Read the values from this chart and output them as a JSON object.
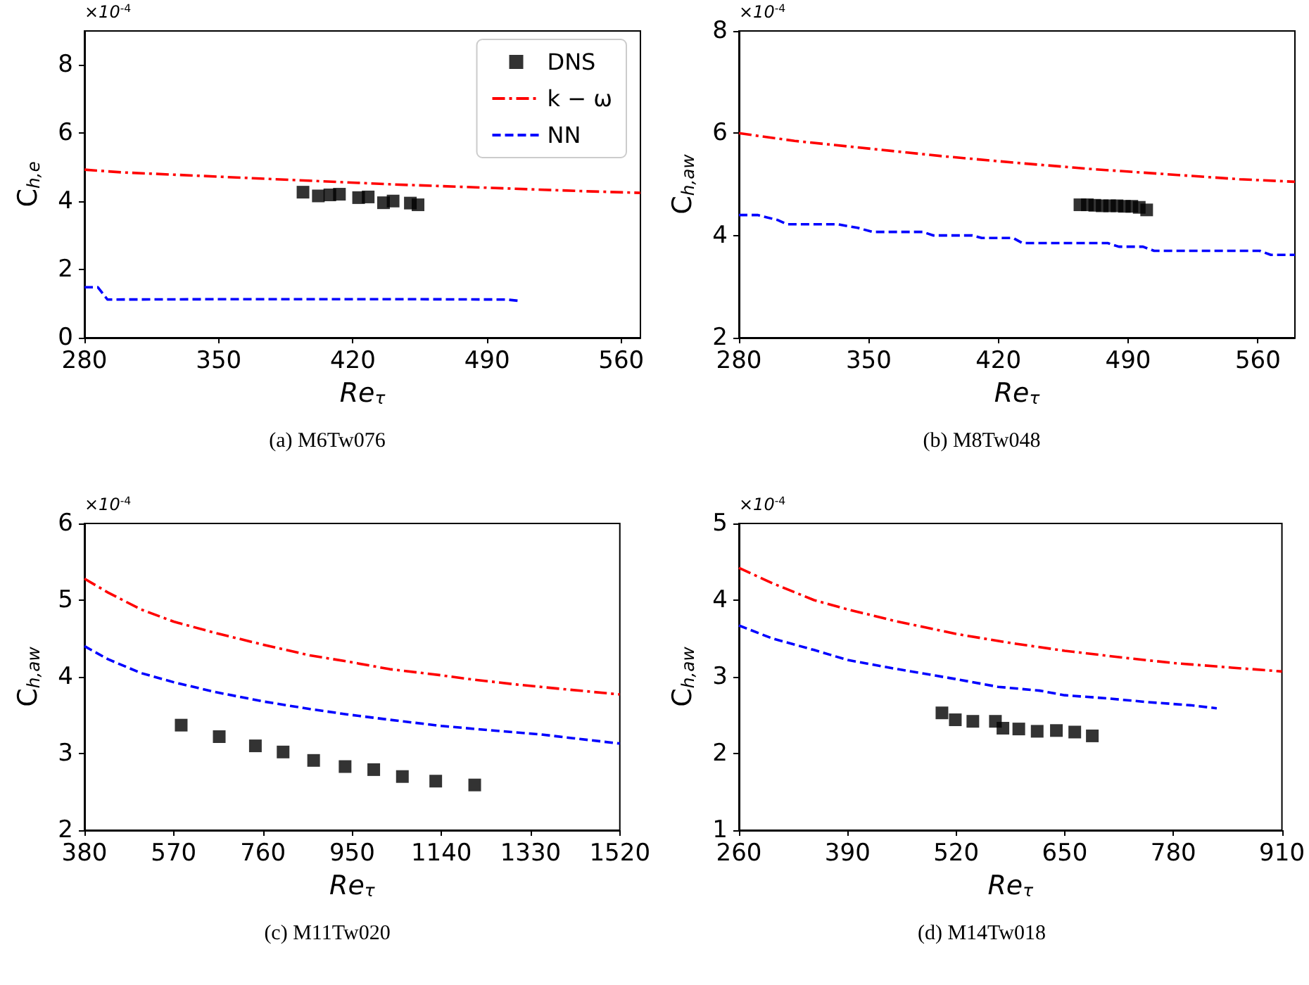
{
  "chart_data": [
    {
      "type": "line",
      "title": "(a) M6Tw076",
      "xlabel": "Re$_{τ}$",
      "ylabel": "C$_{h,e}$",
      "annotations": [
        "×10$^{-4}$"
      ],
      "xlim": [
        280,
        570
      ],
      "ylim": [
        0,
        9
      ],
      "xticks": [
        280,
        350,
        420,
        490,
        560
      ],
      "yticks": [
        0,
        2,
        4,
        6,
        8
      ],
      "grid": false,
      "legend": "top right",
      "series": [
        {
          "name": "DNS",
          "type": "scatter",
          "marker": "square",
          "color": "#000000",
          "x": [
            394,
            402,
            408,
            413,
            423,
            428,
            436,
            441,
            450,
            454
          ],
          "values": [
            4.27,
            4.16,
            4.19,
            4.21,
            4.11,
            4.13,
            3.96,
            4.01,
            3.95,
            3.9
          ]
        },
        {
          "name": "k − ω",
          "type": "line",
          "marker": "none",
          "line_style": "dashdot",
          "color": "#ff0000",
          "x": [
            280,
            300,
            340,
            400,
            440,
            490,
            540,
            570
          ],
          "values": [
            4.93,
            4.85,
            4.75,
            4.6,
            4.5,
            4.4,
            4.3,
            4.25
          ]
        },
        {
          "name": "NN",
          "type": "line",
          "marker": "none",
          "line_style": "dashed",
          "color": "#0000ff",
          "x": [
            280,
            287,
            292,
            350,
            400,
            450,
            500,
            507
          ],
          "values": [
            1.48,
            1.48,
            1.12,
            1.13,
            1.13,
            1.13,
            1.12,
            1.08
          ]
        }
      ]
    },
    {
      "type": "line",
      "title": "(b) M8Tw048",
      "xlabel": "Re$_{τ}$",
      "ylabel": "C$_{h,aw}$",
      "annotations": [
        "×10$^{-4}$"
      ],
      "xlim": [
        280,
        580
      ],
      "ylim": [
        2,
        8
      ],
      "xticks": [
        280,
        350,
        420,
        490,
        560
      ],
      "yticks": [
        2,
        4,
        6,
        8
      ],
      "grid": false,
      "series": [
        {
          "type": "scatter",
          "marker": "square",
          "color": "#000000",
          "x": [
            464,
            468,
            472,
            476,
            480,
            484,
            488,
            492,
            496,
            500
          ],
          "values": [
            4.6,
            4.6,
            4.59,
            4.58,
            4.58,
            4.58,
            4.57,
            4.57,
            4.55,
            4.5
          ]
        },
        {
          "type": "line",
          "marker": "none",
          "line_style": "dashdot",
          "color": "#ff0000",
          "x": [
            280,
            310,
            350,
            390,
            430,
            470,
            510,
            550,
            580
          ],
          "values": [
            6.0,
            5.85,
            5.7,
            5.55,
            5.42,
            5.3,
            5.2,
            5.1,
            5.05
          ]
        },
        {
          "type": "line",
          "marker": "none",
          "line_style": "dashed",
          "color": "#0000ff",
          "x": [
            280,
            290,
            301,
            306,
            333,
            344,
            352,
            379,
            385,
            406,
            411,
            428,
            433,
            479,
            485,
            498,
            504,
            561,
            567,
            580
          ],
          "values": [
            4.4,
            4.4,
            4.3,
            4.22,
            4.22,
            4.15,
            4.07,
            4.07,
            4.0,
            4.0,
            3.95,
            3.95,
            3.85,
            3.85,
            3.78,
            3.78,
            3.7,
            3.7,
            3.62,
            3.62
          ]
        }
      ]
    },
    {
      "type": "line",
      "title": "(c) M11Tw020",
      "xlabel": "Re$_{τ}$",
      "ylabel": "C$_{h,aw}$",
      "annotations": [
        "×10$^{-4}$"
      ],
      "xlim": [
        380,
        1520
      ],
      "ylim": [
        2,
        6
      ],
      "xticks": [
        380,
        570,
        760,
        950,
        1140,
        1330,
        1520
      ],
      "yticks": [
        2,
        3,
        4,
        5,
        6
      ],
      "grid": false,
      "series": [
        {
          "type": "scatter",
          "marker": "square",
          "color": "#000000",
          "x": [
            586,
            667,
            744,
            803,
            868,
            935,
            996,
            1057,
            1128,
            1211
          ],
          "values": [
            3.37,
            3.22,
            3.1,
            3.02,
            2.91,
            2.83,
            2.79,
            2.7,
            2.64,
            2.59
          ]
        },
        {
          "type": "line",
          "marker": "none",
          "line_style": "dashdot",
          "color": "#ff0000",
          "x": [
            380,
            430,
            500,
            570,
            660,
            760,
            860,
            940,
            1030,
            1140,
            1200,
            1300,
            1400,
            1520
          ],
          "values": [
            5.28,
            5.1,
            4.88,
            4.72,
            4.57,
            4.42,
            4.28,
            4.2,
            4.1,
            4.02,
            3.97,
            3.9,
            3.84,
            3.77
          ]
        },
        {
          "type": "line",
          "marker": "none",
          "line_style": "dashed",
          "color": "#0000ff",
          "x": [
            380,
            430,
            500,
            570,
            660,
            760,
            860,
            940,
            1030,
            1140,
            1250,
            1350,
            1420,
            1520
          ],
          "values": [
            4.4,
            4.23,
            4.05,
            3.93,
            3.8,
            3.68,
            3.58,
            3.51,
            3.44,
            3.36,
            3.3,
            3.25,
            3.2,
            3.13
          ]
        }
      ]
    },
    {
      "type": "line",
      "title": "(d) M14Tw018",
      "xlabel": "Re$_{τ}$",
      "ylabel": "C$_{h,aw}$",
      "annotations": [
        "×10$^{-4}$"
      ],
      "xlim": [
        260,
        910
      ],
      "ylim": [
        1,
        5
      ],
      "xticks": [
        260,
        390,
        520,
        650,
        780,
        910
      ],
      "yticks": [
        1,
        2,
        3,
        4,
        5
      ],
      "grid": false,
      "series": [
        {
          "type": "scatter",
          "marker": "square",
          "color": "#000000",
          "x": [
            503,
            519,
            540,
            567,
            576,
            595,
            617,
            640,
            662,
            683
          ],
          "values": [
            2.53,
            2.44,
            2.42,
            2.42,
            2.33,
            2.32,
            2.29,
            2.3,
            2.28,
            2.23
          ]
        },
        {
          "type": "line",
          "marker": "none",
          "line_style": "dashdot",
          "color": "#ff0000",
          "x": [
            260,
            300,
            350,
            390,
            450,
            520,
            580,
            650,
            720,
            780,
            850,
            910
          ],
          "values": [
            4.42,
            4.22,
            4.0,
            3.88,
            3.72,
            3.56,
            3.45,
            3.34,
            3.25,
            3.18,
            3.12,
            3.07
          ]
        },
        {
          "type": "line",
          "marker": "none",
          "line_style": "dashed",
          "color": "#0000ff",
          "x": [
            260,
            300,
            350,
            390,
            450,
            520,
            570,
            620,
            650,
            700,
            750,
            800,
            832
          ],
          "values": [
            3.67,
            3.5,
            3.35,
            3.22,
            3.1,
            2.97,
            2.87,
            2.82,
            2.76,
            2.72,
            2.67,
            2.63,
            2.59
          ]
        }
      ]
    }
  ]
}
